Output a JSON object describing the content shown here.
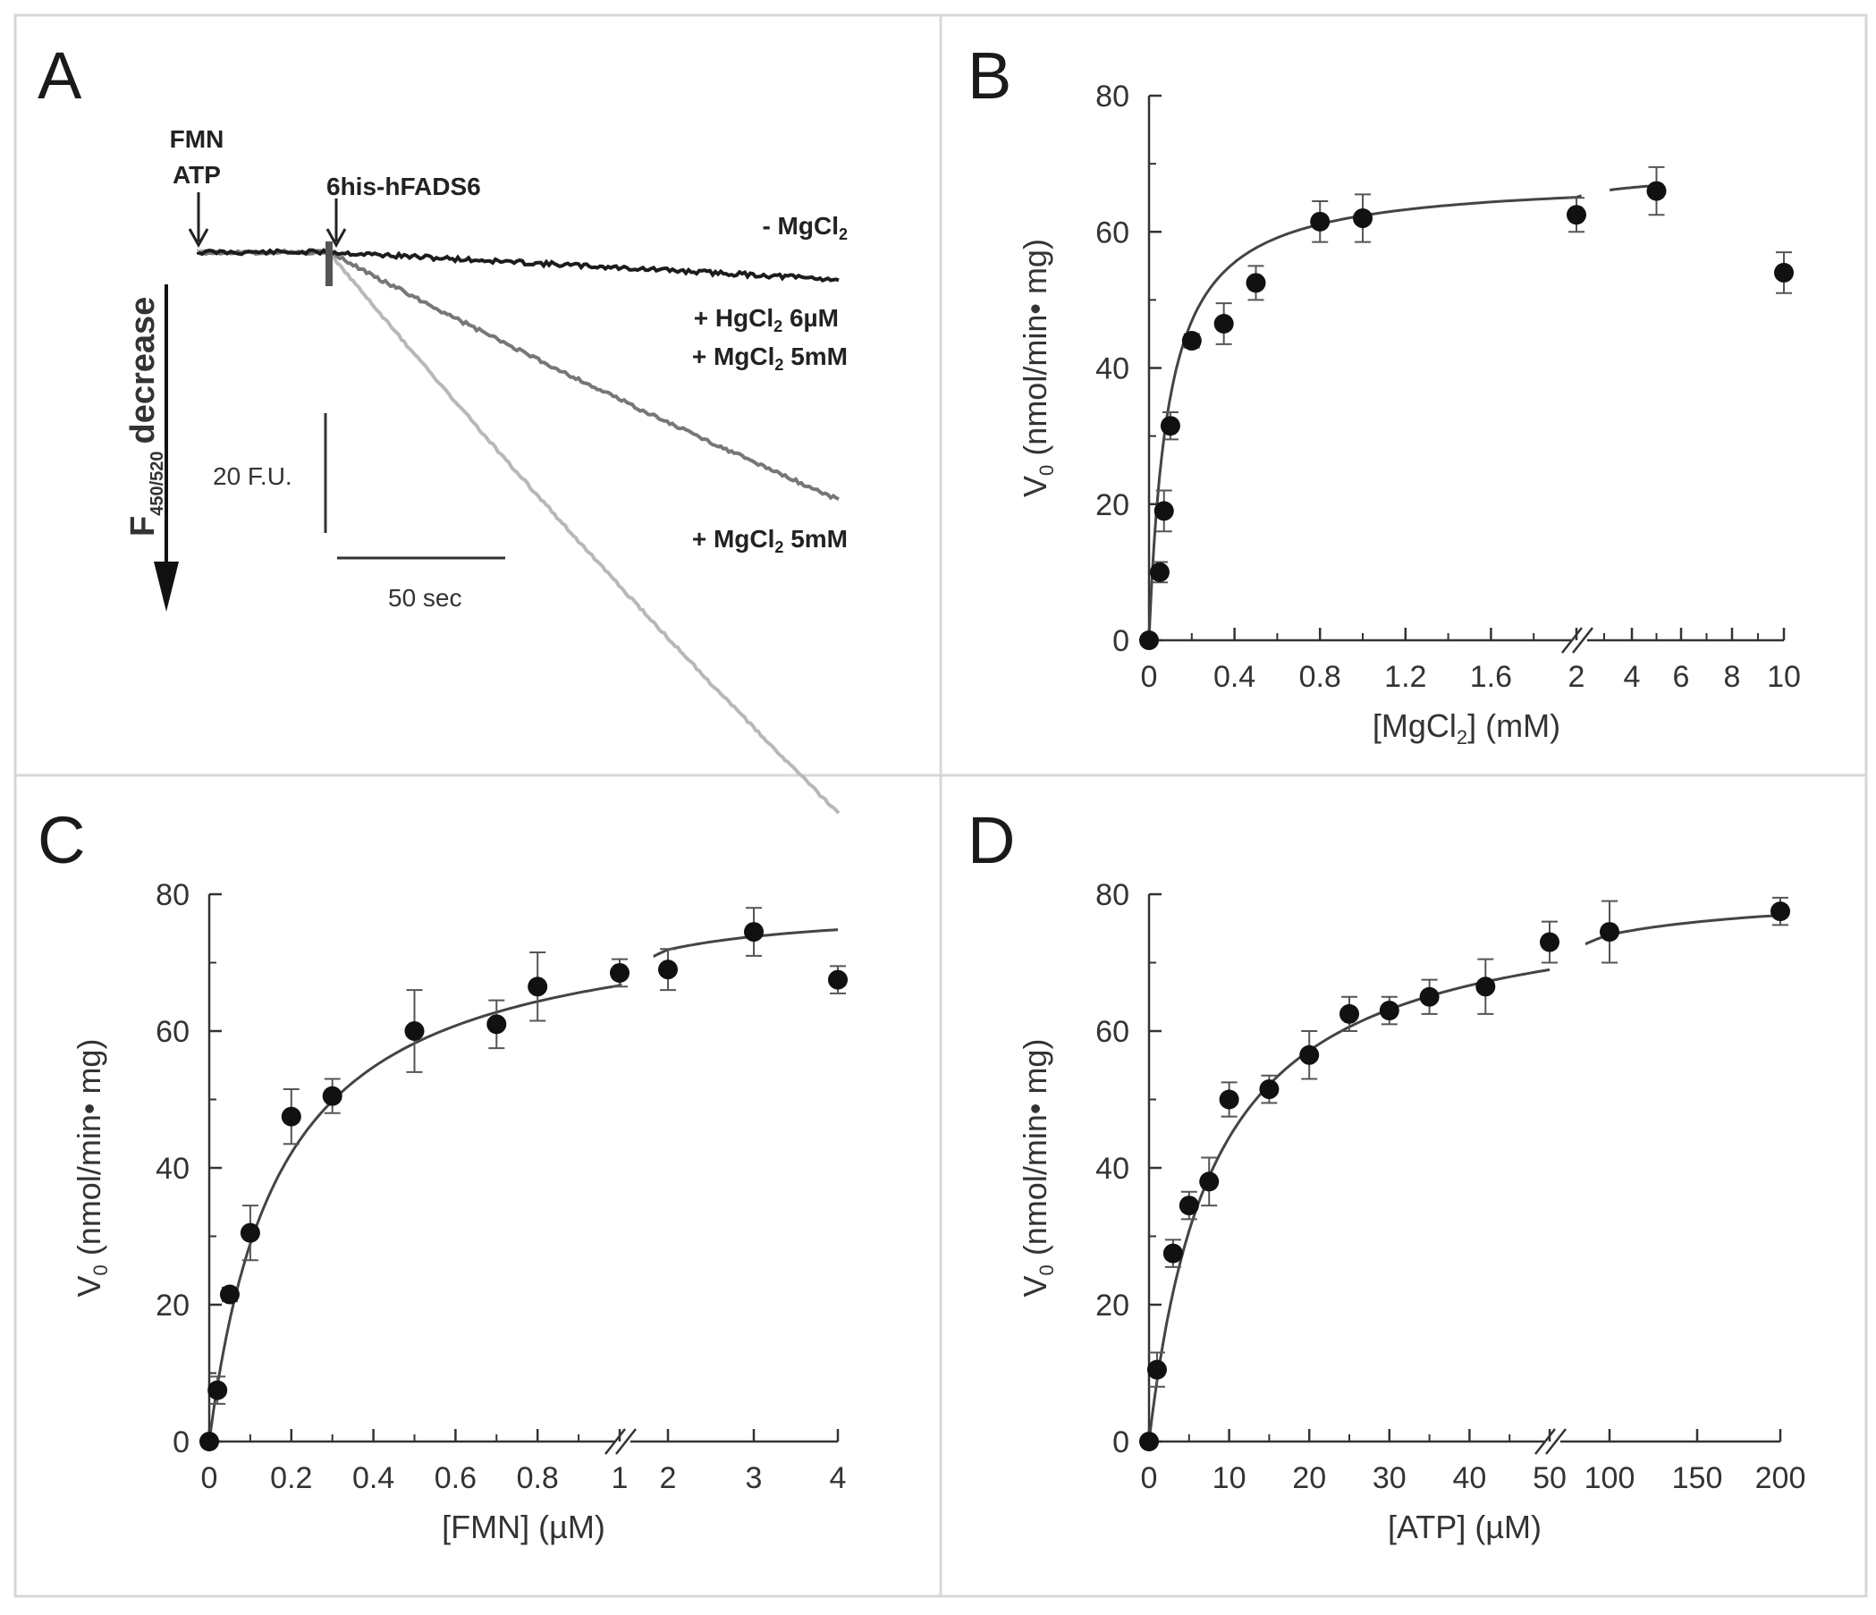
{
  "colors": {
    "frame": "#d7d7d7",
    "axis": "#333333",
    "marker": "#111111",
    "fit": "#444444",
    "trace_minus_mg": "#1c1c1c",
    "trace_hg": "#777777",
    "trace_mg": "#b8b8b8"
  },
  "panels": {
    "A": "A",
    "B": "B",
    "C": "C",
    "D": "D"
  },
  "chart_data": [
    {
      "panel": "A",
      "type": "line",
      "annotations": {
        "fmn": "FMN",
        "atp": "ATP",
        "enzyme": "6his-hFADS6",
        "y_arrow_main": "F",
        "y_arrow_sub": "450/520",
        "y_arrow_tail": "decrease",
        "scale_y": "20 F.U.",
        "scale_x": "50 sec"
      },
      "series": [
        {
          "name": "- MgCl",
          "name_sub": "2",
          "slope_FU_per_50sec": -1.5
        },
        {
          "name": "+ HgCl",
          "name_sub": "2",
          "name_tail": " 6µM",
          "name2": "+ MgCl",
          "name2_sub": "2",
          "name2_tail": " 5mM",
          "slope_FU_per_50sec": -15
        },
        {
          "name": "+ MgCl",
          "name_sub": "2",
          "name_tail": " 5mM",
          "slope_FU_per_50sec": -34
        }
      ]
    },
    {
      "panel": "B",
      "type": "scatter",
      "ylabel": "V",
      "ylabel_sub": "0",
      "ylabel_tail": " (nmol/min• mg)",
      "xlabel": "[MgCl",
      "xlabel_sub": "2",
      "xlabel_tail": "] (mM)",
      "ylim": [
        0,
        80
      ],
      "yticks": [
        0,
        20,
        40,
        60,
        80
      ],
      "xticks_left": [
        "0",
        "0.4",
        "0.8",
        "1.2",
        "1.6",
        "2"
      ],
      "xticks_right": [
        "4",
        "6",
        "8",
        "10"
      ],
      "points": [
        {
          "x": 0,
          "y": 0,
          "err": 0
        },
        {
          "x": 0.05,
          "y": 10,
          "err": 1.5
        },
        {
          "x": 0.07,
          "y": 19,
          "err": 3
        },
        {
          "x": 0.1,
          "y": 31.5,
          "err": 2
        },
        {
          "x": 0.2,
          "y": 44,
          "err": 1
        },
        {
          "x": 0.35,
          "y": 46.5,
          "err": 3
        },
        {
          "x": 0.5,
          "y": 52.5,
          "err": 2.5
        },
        {
          "x": 0.8,
          "y": 61.5,
          "err": 3
        },
        {
          "x": 1.0,
          "y": 62,
          "err": 3.5
        },
        {
          "x": 2.0,
          "y": 62.5,
          "err": 2.5
        },
        {
          "x": 5,
          "y": 66,
          "err": 3.5
        },
        {
          "x": 10,
          "y": 54,
          "err": 3
        }
      ],
      "fit": {
        "vmax": 68,
        "km": 0.09
      }
    },
    {
      "panel": "C",
      "type": "scatter",
      "ylabel": "V",
      "ylabel_sub": "0",
      "ylabel_tail": " (nmol/min• mg)",
      "xlabel": "[FMN] (µM)",
      "ylim": [
        0,
        80
      ],
      "yticks": [
        0,
        20,
        40,
        60,
        80
      ],
      "xticks_left": [
        "0",
        "0.2",
        "0.4",
        "0.6",
        "0.8",
        "1"
      ],
      "xticks_right": [
        "2",
        "3",
        "4"
      ],
      "points": [
        {
          "x": 0,
          "y": 0,
          "err": 0
        },
        {
          "x": 0.02,
          "y": 7.5,
          "err": 2
        },
        {
          "x": 0.05,
          "y": 21.5,
          "err": 1
        },
        {
          "x": 0.1,
          "y": 30.5,
          "err": 4
        },
        {
          "x": 0.2,
          "y": 47.5,
          "err": 4
        },
        {
          "x": 0.3,
          "y": 50.5,
          "err": 2.5
        },
        {
          "x": 0.5,
          "y": 60,
          "err": 6
        },
        {
          "x": 0.7,
          "y": 61,
          "err": 3.5
        },
        {
          "x": 0.8,
          "y": 66.5,
          "err": 5
        },
        {
          "x": 1.0,
          "y": 68.5,
          "err": 2
        },
        {
          "x": 2,
          "y": 69,
          "err": 3
        },
        {
          "x": 3,
          "y": 74.5,
          "err": 3.5
        },
        {
          "x": 4,
          "y": 67.5,
          "err": 2
        }
      ],
      "fit": {
        "vmax": 78,
        "km": 0.17
      }
    },
    {
      "panel": "D",
      "type": "scatter",
      "ylabel": "V",
      "ylabel_sub": "0",
      "ylabel_tail": " (nmol/min• mg)",
      "xlabel": "[ATP] (µM)",
      "ylim": [
        0,
        80
      ],
      "yticks": [
        0,
        20,
        40,
        60,
        80
      ],
      "xticks_left": [
        "0",
        "10",
        "20",
        "30",
        "40",
        "50"
      ],
      "xticks_right": [
        "100",
        "150",
        "200"
      ],
      "points": [
        {
          "x": 0,
          "y": 0,
          "err": 0
        },
        {
          "x": 1,
          "y": 10.5,
          "err": 2.5
        },
        {
          "x": 3,
          "y": 27.5,
          "err": 2
        },
        {
          "x": 5,
          "y": 34.5,
          "err": 2
        },
        {
          "x": 7.5,
          "y": 38,
          "err": 3.5
        },
        {
          "x": 10,
          "y": 50,
          "err": 2.5
        },
        {
          "x": 15,
          "y": 51.5,
          "err": 2
        },
        {
          "x": 20,
          "y": 56.5,
          "err": 3.5
        },
        {
          "x": 25,
          "y": 62.5,
          "err": 2.5
        },
        {
          "x": 30,
          "y": 63,
          "err": 2
        },
        {
          "x": 35,
          "y": 65,
          "err": 2.5
        },
        {
          "x": 42,
          "y": 66.5,
          "err": 4
        },
        {
          "x": 50,
          "y": 73,
          "err": 3
        },
        {
          "x": 100,
          "y": 74.5,
          "err": 4.5
        },
        {
          "x": 200,
          "y": 77.5,
          "err": 2
        }
      ],
      "fit": {
        "vmax": 80,
        "km": 8
      }
    }
  ]
}
